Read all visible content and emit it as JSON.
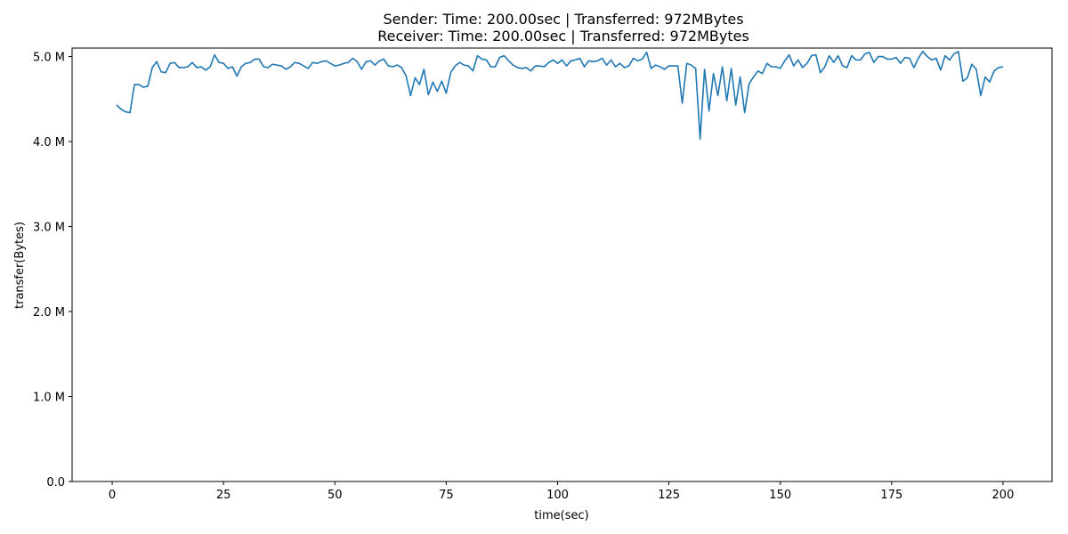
{
  "chart_data": {
    "type": "line",
    "title_line1": "Sender: Time: 200.00sec | Transferred: 972MBytes",
    "title_line2": "Receiver: Time: 200.00sec | Transferred: 972MBytes",
    "xlabel": "time(sec)",
    "ylabel": "transfer(Bytes)",
    "xlim": [
      -9,
      211
    ],
    "ylim": [
      0,
      5100000
    ],
    "xticks": [
      0,
      25,
      50,
      75,
      100,
      125,
      150,
      175,
      200
    ],
    "xtick_labels": [
      "0",
      "25",
      "50",
      "75",
      "100",
      "125",
      "150",
      "175",
      "200"
    ],
    "yticks": [
      0,
      1000000,
      2000000,
      3000000,
      4000000,
      5000000
    ],
    "ytick_labels": [
      "0.0",
      "1.0 M",
      "2.0 M",
      "3.0 M",
      "4.0 M",
      "5.0 M"
    ],
    "grid": false,
    "series": [
      {
        "color": "#1f77b4",
        "x": [
          1,
          2,
          3,
          4,
          5,
          6,
          7,
          8,
          9,
          10,
          11,
          12,
          13,
          14,
          15,
          16,
          17,
          18,
          19,
          20,
          21,
          22,
          23,
          24,
          25,
          26,
          27,
          28,
          29,
          30,
          31,
          32,
          33,
          34,
          35,
          36,
          37,
          38,
          39,
          40,
          41,
          42,
          43,
          44,
          45,
          46,
          47,
          48,
          49,
          50,
          51,
          52,
          53,
          54,
          55,
          56,
          57,
          58,
          59,
          60,
          61,
          62,
          63,
          64,
          65,
          66,
          67,
          68,
          69,
          70,
          71,
          72,
          73,
          74,
          75,
          76,
          77,
          78,
          79,
          80,
          81,
          82,
          83,
          84,
          85,
          86,
          87,
          88,
          89,
          90,
          91,
          92,
          93,
          94,
          95,
          96,
          97,
          98,
          99,
          100,
          101,
          102,
          103,
          104,
          105,
          106,
          107,
          108,
          109,
          110,
          111,
          112,
          113,
          114,
          115,
          116,
          117,
          118,
          119,
          120,
          121,
          122,
          123,
          124,
          125,
          126,
          127,
          128,
          129,
          130,
          131,
          132,
          133,
          134,
          135,
          136,
          137,
          138,
          139,
          140,
          141,
          142,
          143,
          144,
          145,
          146,
          147,
          148,
          149,
          150,
          151,
          152,
          153,
          154,
          155,
          156,
          157,
          158,
          159,
          160,
          161,
          162,
          163,
          164,
          165,
          166,
          167,
          168,
          169,
          170,
          171,
          172,
          173,
          174,
          175,
          176,
          177,
          178,
          179,
          180,
          181,
          182,
          183,
          184,
          185,
          186,
          187,
          188,
          189,
          190,
          191,
          192,
          193,
          194,
          195,
          196,
          197,
          198,
          199,
          200
        ],
        "values": [
          4430000,
          4380000,
          4350000,
          4340000,
          4670000,
          4670000,
          4640000,
          4650000,
          4870000,
          4940000,
          4820000,
          4810000,
          4920000,
          4930000,
          4870000,
          4870000,
          4880000,
          4930000,
          4870000,
          4880000,
          4840000,
          4880000,
          5020000,
          4930000,
          4920000,
          4860000,
          4880000,
          4770000,
          4880000,
          4920000,
          4930000,
          4970000,
          4970000,
          4880000,
          4870000,
          4910000,
          4900000,
          4890000,
          4850000,
          4880000,
          4930000,
          4920000,
          4890000,
          4860000,
          4930000,
          4920000,
          4940000,
          4950000,
          4920000,
          4890000,
          4900000,
          4920000,
          4930000,
          4980000,
          4940000,
          4850000,
          4940000,
          4950000,
          4900000,
          4950000,
          4970000,
          4890000,
          4880000,
          4900000,
          4870000,
          4770000,
          4540000,
          4750000,
          4670000,
          4850000,
          4550000,
          4700000,
          4590000,
          4710000,
          4570000,
          4810000,
          4890000,
          4930000,
          4900000,
          4890000,
          4830000,
          5010000,
          4970000,
          4960000,
          4880000,
          4880000,
          4990000,
          5010000,
          4950000,
          4900000,
          4870000,
          4860000,
          4870000,
          4830000,
          4890000,
          4890000,
          4880000,
          4930000,
          4960000,
          4920000,
          4960000,
          4890000,
          4950000,
          4960000,
          4980000,
          4880000,
          4950000,
          4940000,
          4950000,
          4980000,
          4900000,
          4960000,
          4880000,
          4920000,
          4870000,
          4890000,
          4980000,
          4950000,
          4970000,
          5050000,
          4860000,
          4900000,
          4880000,
          4850000,
          4890000,
          4890000,
          4890000,
          4450000,
          4920000,
          4900000,
          4860000,
          4030000,
          4850000,
          4360000,
          4800000,
          4540000,
          4880000,
          4480000,
          4860000,
          4430000,
          4760000,
          4340000,
          4680000,
          4760000,
          4830000,
          4800000,
          4920000,
          4880000,
          4880000,
          4860000,
          4950000,
          5020000,
          4890000,
          4960000,
          4870000,
          4920000,
          5010000,
          5020000,
          4810000,
          4880000,
          5010000,
          4930000,
          5010000,
          4890000,
          4870000,
          5010000,
          4960000,
          4960000,
          5030000,
          5050000,
          4930000,
          5000000,
          5000000,
          4970000,
          4970000,
          4990000,
          4920000,
          4990000,
          4980000,
          4870000,
          4980000,
          5060000,
          5000000,
          4960000,
          4980000,
          4840000,
          5010000,
          4960000,
          5030000,
          5060000,
          4710000,
          4750000,
          4910000,
          4850000,
          4540000,
          4760000,
          4700000,
          4830000,
          4870000,
          4880000
        ]
      }
    ]
  }
}
